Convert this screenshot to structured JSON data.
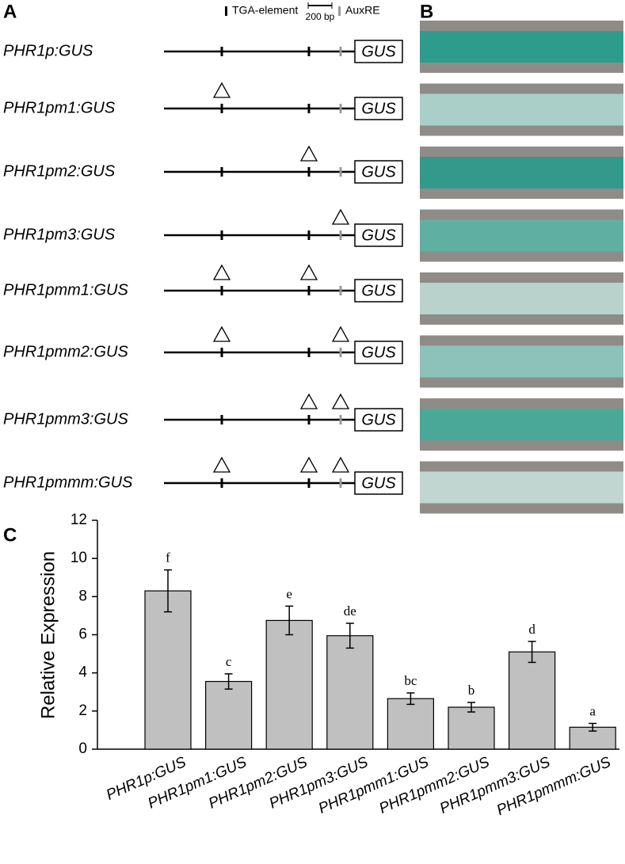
{
  "panels": {
    "a": "A",
    "b": "B",
    "c": "C"
  },
  "panel_a": {
    "legend": {
      "tga": "TGA-element",
      "auxre": "AuxRE",
      "scale": "200 bp"
    },
    "reporter": "GUS",
    "constructs": [
      {
        "label": "PHR1p:GUS",
        "mutated": [
          false,
          false,
          false
        ]
      },
      {
        "label": "PHR1pm1:GUS",
        "mutated": [
          true,
          false,
          false
        ]
      },
      {
        "label": "PHR1pm2:GUS",
        "mutated": [
          false,
          true,
          false
        ]
      },
      {
        "label": "PHR1pm3:GUS",
        "mutated": [
          false,
          false,
          true
        ]
      },
      {
        "label": "PHR1pmm1:GUS",
        "mutated": [
          true,
          true,
          false
        ]
      },
      {
        "label": "PHR1pmm2:GUS",
        "mutated": [
          true,
          false,
          true
        ]
      },
      {
        "label": "PHR1pmm3:GUS",
        "mutated": [
          false,
          true,
          true
        ]
      },
      {
        "label": "PHR1pmmm:GUS",
        "mutated": [
          true,
          true,
          true
        ]
      }
    ]
  },
  "panel_b": {
    "stain_colors": [
      "#2e9c8c",
      "#a9cfc8",
      "#33998a",
      "#5fb0a3",
      "#b9d2cc",
      "#8cc2b8",
      "#4aa898",
      "#c2d6d1"
    ]
  },
  "chart_data": {
    "type": "bar",
    "ylabel": "Relative Expression",
    "categories": [
      "PHR1p:GUS",
      "PHR1pm1:GUS",
      "PHR1pm2:GUS",
      "PHR1pm3:GUS",
      "PHR1pmm1:GUS",
      "PHR1pmm2:GUS",
      "PHR1pmm3:GUS",
      "PHR1pmmm:GUS"
    ],
    "values": [
      8.3,
      3.55,
      6.75,
      5.95,
      2.65,
      2.2,
      5.1,
      1.15
    ],
    "errors": [
      1.1,
      0.4,
      0.75,
      0.65,
      0.3,
      0.25,
      0.55,
      0.2
    ],
    "letters": [
      "f",
      "c",
      "e",
      "de",
      "bc",
      "b",
      "d",
      "a"
    ],
    "color": "#c0c0c0",
    "ylim": [
      0,
      12
    ],
    "yticks": [
      0,
      2,
      4,
      6,
      8,
      10,
      12
    ]
  }
}
